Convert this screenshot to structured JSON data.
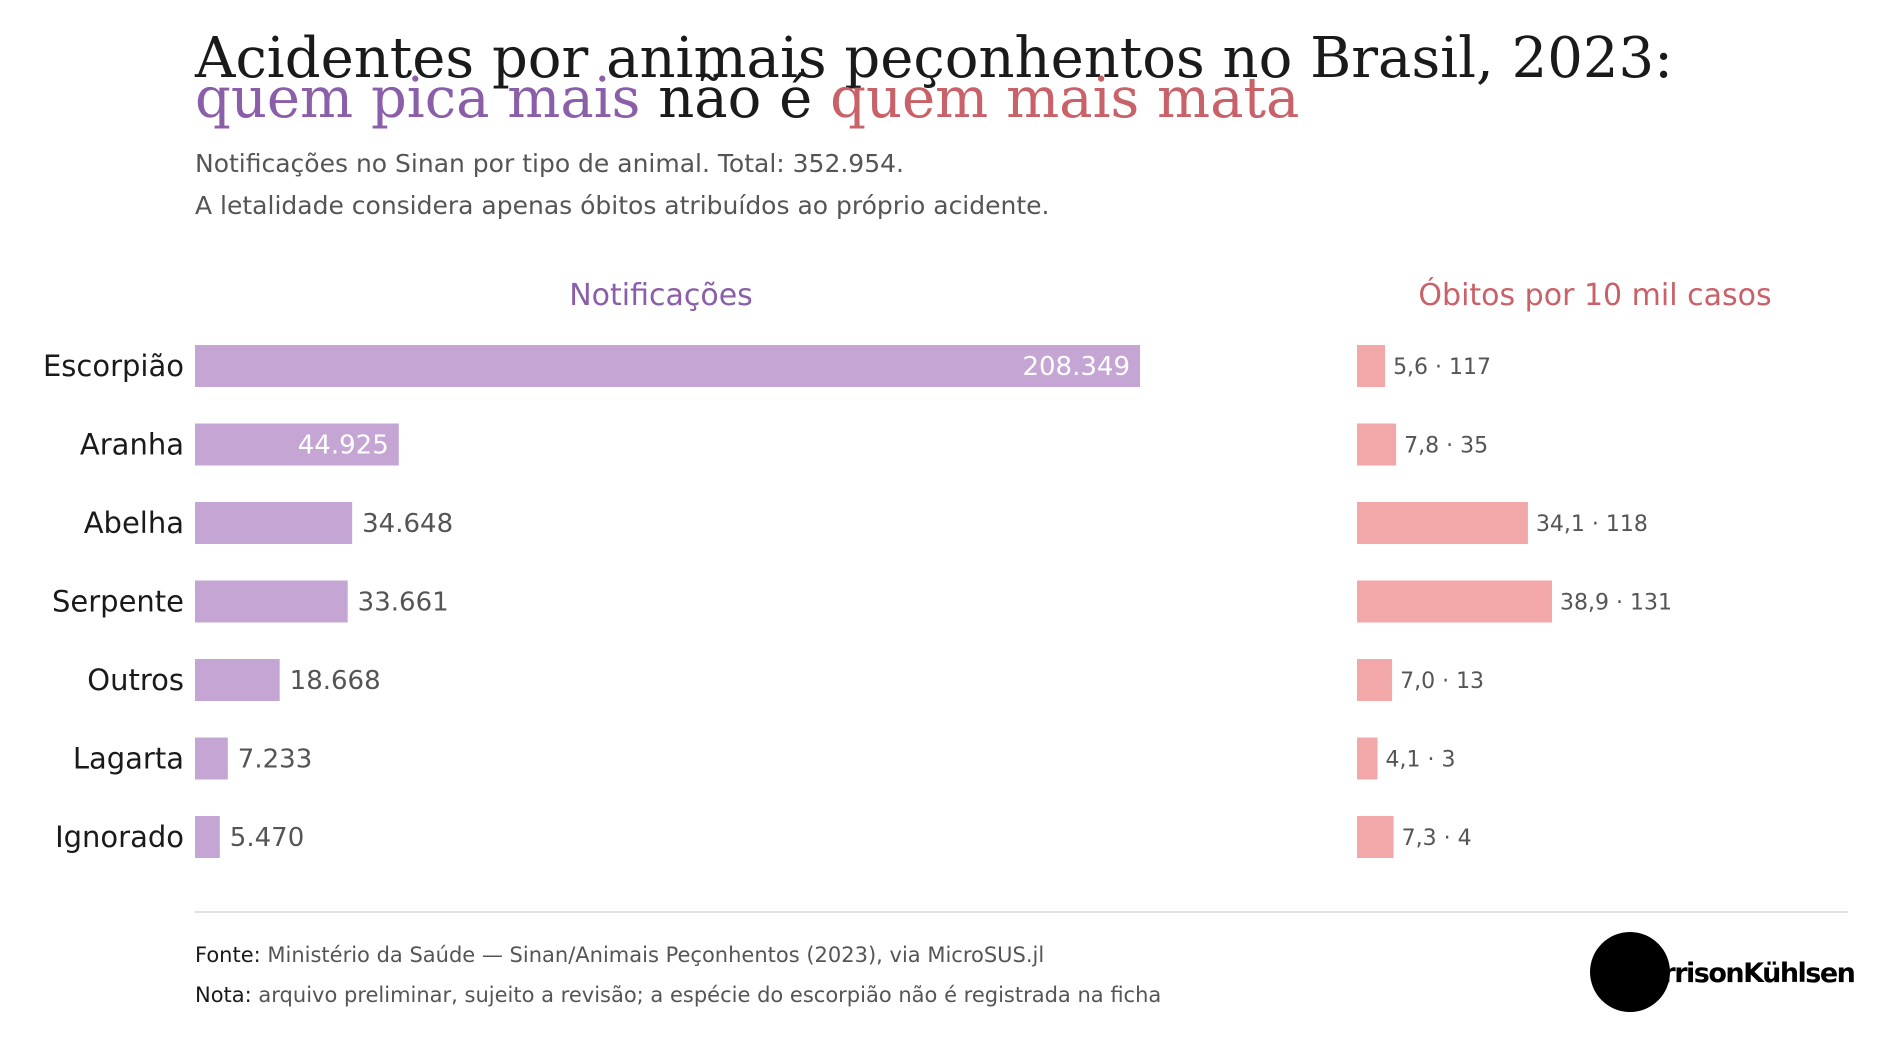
{
  "title": {
    "line1": "Acidentes por animais peçonhentos no Brasil, 2023:",
    "line2_part1": "quem pica mais",
    "line2_part2": " não é ",
    "line2_part3": "quem mais mata"
  },
  "subtitle": {
    "line1": "Notificações no Sinan por tipo de animal. Total: 352.954.",
    "line2": "A letalidade considera apenas óbitos atribuídos ao próprio acidente."
  },
  "colors": {
    "purple_text": "#8a5ea8",
    "purple_bar": "#c4a5d4",
    "red_text": "#c96168",
    "red_bar": "#f2a8a8",
    "title": "#1a1a1a",
    "gray_text": "#555555",
    "divider": "#d9d9d9"
  },
  "chart_data": [
    {
      "type": "bar",
      "orientation": "horizontal",
      "title": "Notificações",
      "categories": [
        "Escorpião",
        "Aranha",
        "Abelha",
        "Serpente",
        "Outros",
        "Lagarta",
        "Ignorado"
      ],
      "values": [
        208349,
        44925,
        34648,
        33661,
        18668,
        7233,
        5470
      ],
      "labels": [
        "208.349",
        "44.925",
        "34.648",
        "33.661",
        "18.668",
        "7.233",
        "5.470"
      ]
    },
    {
      "type": "bar",
      "orientation": "horizontal",
      "title": "Óbitos por 10 mil casos",
      "categories": [
        "Escorpião",
        "Aranha",
        "Abelha",
        "Serpente",
        "Outros",
        "Lagarta",
        "Ignorado"
      ],
      "values": [
        5.6,
        7.8,
        34.1,
        38.9,
        7.0,
        4.1,
        7.3
      ],
      "deaths": [
        117,
        35,
        118,
        131,
        13,
        3,
        4
      ],
      "labels": [
        "5,6",
        "7,8",
        "34,1",
        "38,9",
        "7,0",
        "4,1",
        "7,3"
      ],
      "death_labels": [
        "117",
        "35",
        "118",
        "131",
        "13",
        "3",
        "4"
      ]
    }
  ],
  "footer": {
    "source_label": "Fonte:",
    "source_text": " Ministério da Saúde — Sinan/Animais Peçonhentos (2023), via MicroSUS.jl",
    "note_label": "Nota:",
    "note_text": " arquivo preliminar, sujeito a revisão; a espécie do escorpião não é registrada na ficha"
  },
  "logo": {
    "text": "MorrisonKühlsen"
  }
}
